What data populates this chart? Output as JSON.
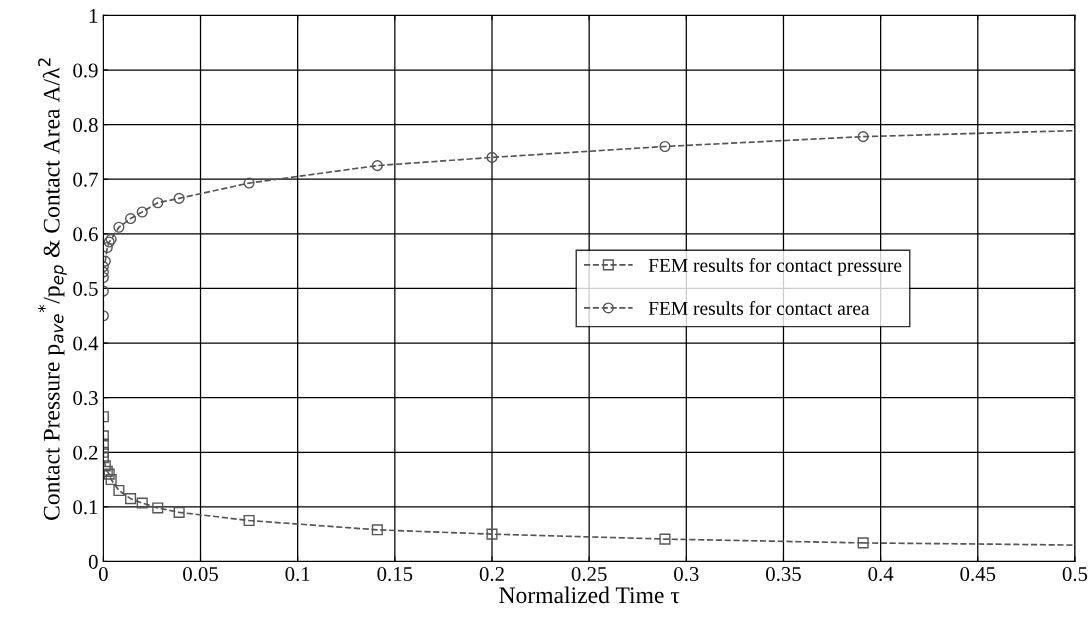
{
  "chart_data": {
    "type": "line",
    "xlabel": "Normalized Time τ",
    "ylabel": "Contact Pressure p$_{ave}$$^{*}$/p$_{ep}$ & Contact Area A/λ$^{2}$",
    "xlim": [
      0,
      0.5
    ],
    "ylim": [
      0,
      1
    ],
    "xticks": [
      0,
      0.05,
      0.1,
      0.15,
      0.2,
      0.25,
      0.3,
      0.35,
      0.4,
      0.45,
      0.5
    ],
    "yticks": [
      0,
      0.1,
      0.2,
      0.3,
      0.4,
      0.5,
      0.6,
      0.7,
      0.8,
      0.9,
      1
    ],
    "grid": true,
    "legend": "right",
    "line_style": "dashed",
    "series": [
      {
        "name": "FEM results for contact pressure",
        "color": "#555555",
        "marker": "square",
        "x": [
          0,
          0,
          0,
          0,
          0,
          0.001,
          0.002,
          0.003,
          0.004,
          0.008,
          0.014,
          0.02,
          0.028,
          0.039,
          0.075,
          0.141,
          0.2,
          0.289,
          0.391
        ],
        "values": [
          0.265,
          0.23,
          0.215,
          0.2,
          0.19,
          0.175,
          0.165,
          0.16,
          0.15,
          0.13,
          0.115,
          0.107,
          0.098,
          0.09,
          0.075,
          0.058,
          0.05,
          0.041,
          0.034
        ]
      },
      {
        "name": "FEM results for contact area",
        "color": "#555555",
        "marker": "circle",
        "x": [
          0,
          0,
          0,
          0,
          0,
          0.001,
          0.002,
          0.003,
          0.004,
          0.008,
          0.014,
          0.02,
          0.028,
          0.039,
          0.075,
          0.141,
          0.2,
          0.289,
          0.391
        ],
        "values": [
          0.45,
          0.495,
          0.52,
          0.53,
          0.54,
          0.55,
          0.575,
          0.585,
          0.59,
          0.612,
          0.628,
          0.64,
          0.657,
          0.665,
          0.693,
          0.725,
          0.74,
          0.76,
          0.778
        ]
      },
      {
        "color": "#555555",
        "marker": "none",
        "x": [
          0.391,
          0.45,
          0.5
        ],
        "values": [
          0.034,
          0.032,
          0.03
        ]
      },
      {
        "color": "#555555",
        "marker": "none",
        "x": [
          0.391,
          0.45,
          0.5
        ],
        "values": [
          0.778,
          0.784,
          0.789
        ]
      }
    ]
  }
}
